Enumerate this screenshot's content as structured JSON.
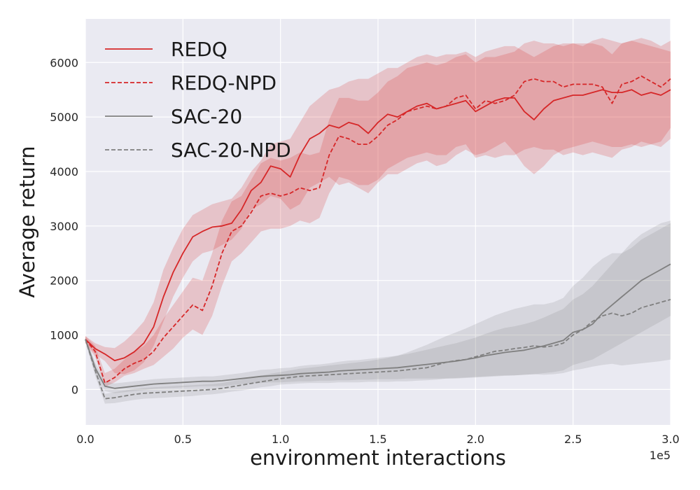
{
  "chart_data": {
    "type": "line",
    "xlabel": "environment interactions",
    "ylabel": "Average return",
    "x_offset_label": "1e5",
    "xlim": [
      0,
      3.0
    ],
    "ylim": [
      -650,
      6800
    ],
    "x_ticks": [
      0.0,
      0.5,
      1.0,
      1.5,
      2.0,
      2.5,
      3.0
    ],
    "x_tick_labels": [
      "0.0",
      "0.5",
      "1.0",
      "1.5",
      "2.0",
      "2.5",
      "3.0"
    ],
    "y_ticks": [
      0,
      1000,
      2000,
      3000,
      4000,
      5000,
      6000
    ],
    "y_tick_labels": [
      "0",
      "1000",
      "2000",
      "3000",
      "4000",
      "5000",
      "6000"
    ],
    "grid": true,
    "legend_position": "top-left",
    "x": [
      0.0,
      0.05,
      0.1,
      0.15,
      0.2,
      0.25,
      0.3,
      0.35,
      0.4,
      0.45,
      0.5,
      0.55,
      0.6,
      0.65,
      0.7,
      0.75,
      0.8,
      0.85,
      0.9,
      0.95,
      1.0,
      1.05,
      1.1,
      1.15,
      1.2,
      1.25,
      1.3,
      1.35,
      1.4,
      1.45,
      1.5,
      1.55,
      1.6,
      1.65,
      1.7,
      1.75,
      1.8,
      1.85,
      1.9,
      1.95,
      2.0,
      2.05,
      2.1,
      2.15,
      2.2,
      2.25,
      2.3,
      2.35,
      2.4,
      2.45,
      2.5,
      2.55,
      2.6,
      2.65,
      2.7,
      2.75,
      2.8,
      2.85,
      2.9,
      2.95,
      3.0
    ],
    "series": [
      {
        "name": "REDQ",
        "color": "#d62728",
        "dash": "solid",
        "values": [
          920,
          750,
          650,
          530,
          580,
          690,
          850,
          1150,
          1700,
          2150,
          2500,
          2800,
          2900,
          2980,
          3000,
          3050,
          3300,
          3650,
          3800,
          4100,
          4050,
          3900,
          4300,
          4600,
          4700,
          4850,
          4800,
          4900,
          4850,
          4700,
          4900,
          5050,
          5000,
          5100,
          5200,
          5250,
          5150,
          5200,
          5250,
          5300,
          5100,
          5200,
          5300,
          5350,
          5350,
          5100,
          4950,
          5150,
          5300,
          5350,
          5400,
          5400,
          5450,
          5500,
          5450,
          5450,
          5500,
          5400,
          5450,
          5400,
          5500
        ],
        "band_low": [
          850,
          650,
          520,
          300,
          280,
          350,
          500,
          800,
          1250,
          1700,
          2050,
          2350,
          2500,
          2550,
          2650,
          2750,
          2950,
          3300,
          3400,
          3550,
          3500,
          3300,
          3400,
          3700,
          3800,
          3900,
          3750,
          3800,
          3700,
          3600,
          3800,
          3950,
          3950,
          4050,
          4150,
          4200,
          4100,
          4150,
          4300,
          4400,
          4300,
          4350,
          4450,
          4550,
          4350,
          4100,
          3950,
          4100,
          4300,
          4400,
          4450,
          4500,
          4550,
          4500,
          4450,
          4450,
          4500,
          4450,
          4500,
          4550,
          4800
        ],
        "band_high": [
          980,
          850,
          780,
          760,
          880,
          1050,
          1250,
          1600,
          2200,
          2600,
          2950,
          3200,
          3300,
          3400,
          3450,
          3500,
          3700,
          4000,
          4200,
          4500,
          4550,
          4600,
          4900,
          5200,
          5350,
          5500,
          5550,
          5650,
          5700,
          5700,
          5800,
          5900,
          5900,
          6000,
          6100,
          6150,
          6100,
          6150,
          6150,
          6200,
          6100,
          6200,
          6250,
          6300,
          6300,
          6200,
          6100,
          6200,
          6300,
          6350,
          6350,
          6300,
          6400,
          6450,
          6400,
          6350,
          6400,
          6350,
          6300,
          6250,
          6200
        ]
      },
      {
        "name": "REDQ-NPD",
        "color": "#d62728",
        "dash": "dashed",
        "values": [
          920,
          700,
          120,
          220,
          380,
          480,
          550,
          700,
          950,
          1150,
          1350,
          1550,
          1450,
          1900,
          2500,
          2900,
          3000,
          3250,
          3550,
          3600,
          3550,
          3600,
          3700,
          3650,
          3700,
          4300,
          4650,
          4600,
          4500,
          4500,
          4650,
          4850,
          4950,
          5100,
          5150,
          5200,
          5150,
          5200,
          5350,
          5400,
          5150,
          5300,
          5250,
          5300,
          5400,
          5650,
          5700,
          5650,
          5650,
          5550,
          5600,
          5600,
          5600,
          5550,
          5250,
          5600,
          5650,
          5750,
          5650,
          5550,
          5700
        ],
        "band_low": [
          850,
          600,
          50,
          130,
          250,
          300,
          380,
          450,
          600,
          750,
          950,
          1100,
          1000,
          1350,
          1900,
          2350,
          2500,
          2700,
          2900,
          2950,
          2950,
          3000,
          3100,
          3050,
          3150,
          3600,
          3900,
          3850,
          3750,
          3750,
          3850,
          4050,
          4150,
          4250,
          4300,
          4350,
          4300,
          4300,
          4450,
          4500,
          4250,
          4300,
          4250,
          4300,
          4300,
          4400,
          4450,
          4400,
          4400,
          4300,
          4350,
          4300,
          4350,
          4300,
          4250,
          4400,
          4450,
          4550,
          4500,
          4450,
          4600
        ],
        "band_high": [
          980,
          800,
          300,
          380,
          550,
          700,
          800,
          1000,
          1300,
          1550,
          1800,
          2050,
          2000,
          2500,
          3100,
          3450,
          3550,
          3850,
          4150,
          4250,
          4200,
          4250,
          4350,
          4300,
          4350,
          4950,
          5350,
          5350,
          5300,
          5300,
          5450,
          5650,
          5750,
          5900,
          5950,
          6000,
          5950,
          6000,
          6100,
          6150,
          6000,
          6100,
          6100,
          6150,
          6200,
          6350,
          6400,
          6350,
          6350,
          6300,
          6350,
          6350,
          6350,
          6300,
          6150,
          6350,
          6400,
          6450,
          6400,
          6300,
          6400
        ]
      },
      {
        "name": "SAC-20",
        "color": "#7f7f7f",
        "dash": "solid",
        "values": [
          920,
          400,
          60,
          20,
          40,
          60,
          80,
          100,
          110,
          120,
          130,
          140,
          150,
          150,
          160,
          180,
          200,
          220,
          240,
          250,
          260,
          270,
          290,
          300,
          310,
          320,
          340,
          350,
          360,
          370,
          380,
          390,
          400,
          420,
          440,
          460,
          480,
          500,
          520,
          550,
          580,
          620,
          650,
          680,
          700,
          720,
          760,
          800,
          850,
          900,
          1050,
          1100,
          1200,
          1400,
          1550,
          1700,
          1850,
          2000,
          2100,
          2200,
          2300
        ],
        "band_low": [
          880,
          300,
          -30,
          -70,
          -50,
          -30,
          -10,
          10,
          20,
          30,
          40,
          50,
          60,
          60,
          60,
          80,
          100,
          110,
          120,
          130,
          130,
          140,
          150,
          150,
          160,
          160,
          170,
          170,
          180,
          180,
          190,
          190,
          190,
          200,
          200,
          200,
          200,
          200,
          200,
          210,
          220,
          230,
          240,
          250,
          260,
          270,
          280,
          300,
          320,
          350,
          450,
          500,
          550,
          650,
          750,
          850,
          950,
          1050,
          1150,
          1250,
          1350
        ],
        "band_high": [
          960,
          500,
          150,
          110,
          130,
          150,
          170,
          190,
          200,
          210,
          220,
          230,
          240,
          240,
          260,
          280,
          300,
          330,
          360,
          370,
          390,
          400,
          430,
          450,
          460,
          480,
          510,
          530,
          540,
          560,
          580,
          600,
          620,
          650,
          690,
          730,
          770,
          810,
          850,
          900,
          950,
          1020,
          1080,
          1130,
          1160,
          1200,
          1250,
          1320,
          1400,
          1480,
          1650,
          1750,
          1900,
          2100,
          2300,
          2500,
          2700,
          2850,
          2950,
          3050,
          3100
        ]
      },
      {
        "name": "SAC-20-NPD",
        "color": "#7f7f7f",
        "dash": "dashed",
        "values": [
          920,
          350,
          -170,
          -150,
          -120,
          -90,
          -70,
          -60,
          -50,
          -40,
          -30,
          -20,
          -10,
          0,
          20,
          50,
          80,
          110,
          140,
          170,
          200,
          220,
          240,
          250,
          260,
          270,
          280,
          290,
          300,
          310,
          320,
          330,
          340,
          360,
          380,
          400,
          450,
          500,
          530,
          550,
          600,
          650,
          700,
          720,
          750,
          770,
          800,
          780,
          800,
          850,
          1000,
          1100,
          1250,
          1350,
          1400,
          1350,
          1400,
          1500,
          1550,
          1600,
          1650
        ],
        "band_low": [
          880,
          250,
          -260,
          -250,
          -220,
          -190,
          -170,
          -160,
          -150,
          -140,
          -130,
          -120,
          -100,
          -90,
          -70,
          -40,
          -20,
          10,
          40,
          60,
          90,
          100,
          110,
          120,
          120,
          120,
          130,
          130,
          130,
          140,
          140,
          140,
          150,
          150,
          160,
          170,
          180,
          200,
          210,
          220,
          230,
          240,
          250,
          260,
          260,
          270,
          280,
          270,
          280,
          300,
          350,
          380,
          420,
          450,
          470,
          440,
          460,
          480,
          500,
          520,
          550
        ],
        "band_high": [
          960,
          450,
          -80,
          -50,
          -20,
          10,
          30,
          40,
          50,
          60,
          70,
          80,
          90,
          100,
          120,
          150,
          180,
          220,
          250,
          290,
          320,
          350,
          380,
          400,
          420,
          440,
          460,
          480,
          500,
          520,
          550,
          580,
          620,
          680,
          750,
          820,
          900,
          980,
          1050,
          1120,
          1200,
          1280,
          1360,
          1420,
          1480,
          1520,
          1560,
          1560,
          1600,
          1680,
          1900,
          2050,
          2250,
          2400,
          2500,
          2500,
          2600,
          2750,
          2850,
          2950,
          3050
        ]
      }
    ]
  }
}
